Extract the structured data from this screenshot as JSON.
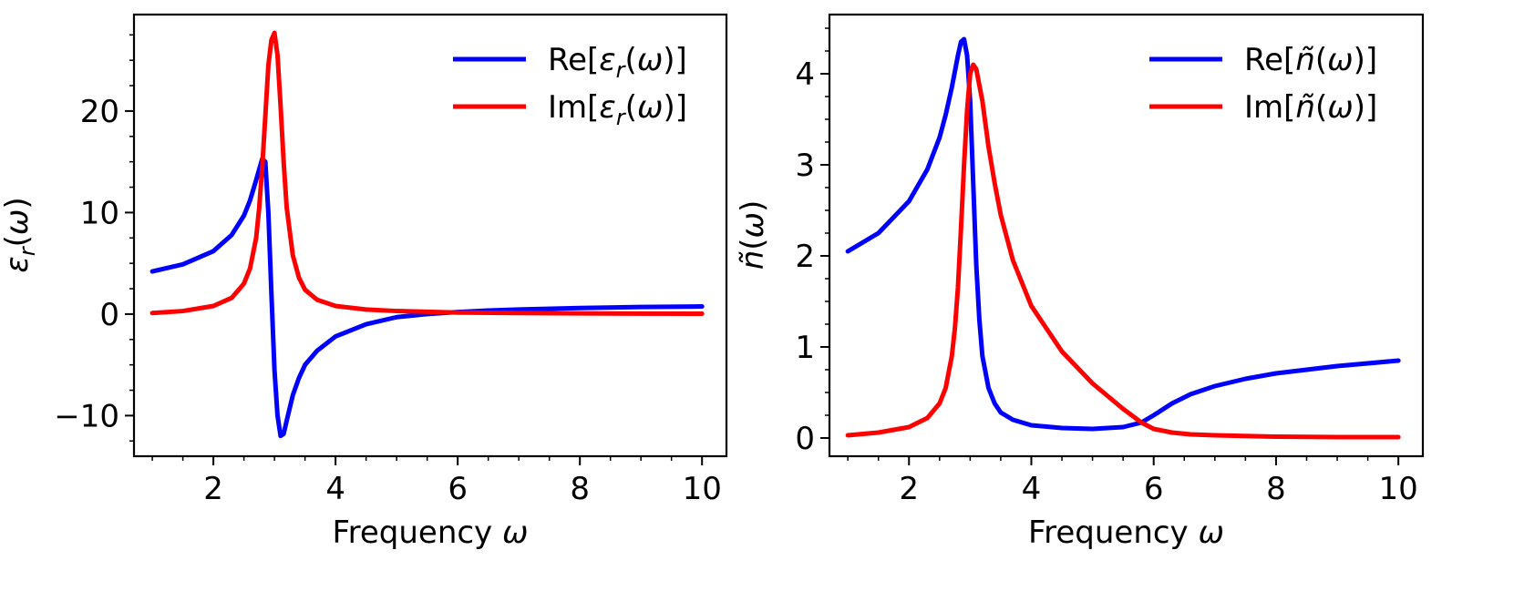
{
  "chart_data": [
    {
      "type": "line",
      "xlabel": "Frequency ω",
      "ylabel": "εr(ω)",
      "xlim": [
        0.7,
        10.4
      ],
      "ylim": [
        -14.0,
        29.5
      ],
      "xticks": [
        2,
        4,
        6,
        8,
        10
      ],
      "xtick_labels": [
        "2",
        "4",
        "6",
        "8",
        "10"
      ],
      "yticks": [
        -10,
        0,
        10,
        20
      ],
      "ytick_labels": [
        "−10",
        "0",
        "10",
        "20"
      ],
      "legend_position": "top-right",
      "series": [
        {
          "name": "Re[εr(ω)]",
          "legend_prefix": "Re[",
          "legend_sym": "ε",
          "legend_sub": "r",
          "legend_suffix": "(ω)]",
          "color": "#0000ff",
          "x": [
            1.0,
            1.5,
            2.0,
            2.3,
            2.5,
            2.6,
            2.7,
            2.8,
            2.85,
            2.9,
            2.95,
            3.0,
            3.05,
            3.1,
            3.15,
            3.2,
            3.3,
            3.4,
            3.5,
            3.7,
            4.0,
            4.5,
            5.0,
            5.5,
            6.0,
            6.5,
            7.0,
            8.0,
            9.0,
            10.0
          ],
          "y": [
            4.2,
            4.9,
            6.2,
            7.8,
            9.7,
            11.2,
            13.2,
            15.3,
            15.0,
            10.0,
            2.0,
            -5.5,
            -10.0,
            -12.0,
            -11.8,
            -10.5,
            -8.0,
            -6.3,
            -5.0,
            -3.6,
            -2.2,
            -1.0,
            -0.3,
            0.0,
            0.2,
            0.35,
            0.45,
            0.6,
            0.7,
            0.75
          ]
        },
        {
          "name": "Im[εr(ω)]",
          "legend_prefix": "Im[",
          "legend_sym": "ε",
          "legend_sub": "r",
          "legend_suffix": "(ω)]",
          "color": "#ff0000",
          "x": [
            1.0,
            1.5,
            2.0,
            2.3,
            2.5,
            2.6,
            2.7,
            2.75,
            2.8,
            2.85,
            2.9,
            2.95,
            3.0,
            3.05,
            3.1,
            3.15,
            3.2,
            3.3,
            3.4,
            3.5,
            3.7,
            4.0,
            4.5,
            5.0,
            6.0,
            7.0,
            8.0,
            9.0,
            10.0
          ],
          "y": [
            0.1,
            0.3,
            0.8,
            1.6,
            3.0,
            4.5,
            7.5,
            10.5,
            14.5,
            19.5,
            24.5,
            27.0,
            27.7,
            25.5,
            20.5,
            15.0,
            10.5,
            5.8,
            3.6,
            2.4,
            1.4,
            0.8,
            0.45,
            0.3,
            0.15,
            0.1,
            0.07,
            0.05,
            0.04
          ]
        }
      ]
    },
    {
      "type": "line",
      "xlabel": "Frequency ω",
      "ylabel": "ñ(ω)",
      "xlim": [
        0.7,
        10.4
      ],
      "ylim": [
        -0.2,
        4.65
      ],
      "xticks": [
        2,
        4,
        6,
        8,
        10
      ],
      "xtick_labels": [
        "2",
        "4",
        "6",
        "8",
        "10"
      ],
      "yticks": [
        0,
        1,
        2,
        3,
        4
      ],
      "ytick_labels": [
        "0",
        "1",
        "2",
        "3",
        "4"
      ],
      "legend_position": "top-right",
      "series": [
        {
          "name": "Re[ñ(ω)]",
          "legend_prefix": "Re[",
          "legend_sym": "ñ",
          "legend_sub": "",
          "legend_suffix": "(ω)]",
          "color": "#0000ff",
          "x": [
            1.0,
            1.5,
            2.0,
            2.3,
            2.5,
            2.6,
            2.7,
            2.8,
            2.85,
            2.9,
            2.95,
            3.0,
            3.05,
            3.1,
            3.15,
            3.2,
            3.3,
            3.4,
            3.5,
            3.7,
            4.0,
            4.5,
            5.0,
            5.5,
            5.8,
            6.0,
            6.3,
            6.6,
            7.0,
            7.5,
            8.0,
            9.0,
            10.0
          ],
          "y": [
            2.05,
            2.25,
            2.6,
            2.95,
            3.3,
            3.55,
            3.85,
            4.2,
            4.35,
            4.38,
            4.2,
            3.7,
            2.8,
            1.9,
            1.3,
            0.9,
            0.55,
            0.38,
            0.28,
            0.2,
            0.14,
            0.11,
            0.1,
            0.12,
            0.17,
            0.25,
            0.38,
            0.48,
            0.57,
            0.65,
            0.71,
            0.79,
            0.85
          ]
        },
        {
          "name": "Im[ñ(ω)]",
          "legend_prefix": "Im[",
          "legend_sym": "ñ",
          "legend_sub": "",
          "legend_suffix": "(ω)]",
          "color": "#ff0000",
          "x": [
            1.0,
            1.5,
            2.0,
            2.3,
            2.5,
            2.6,
            2.7,
            2.75,
            2.8,
            2.85,
            2.9,
            2.95,
            3.0,
            3.05,
            3.1,
            3.2,
            3.3,
            3.4,
            3.5,
            3.7,
            4.0,
            4.5,
            5.0,
            5.5,
            5.8,
            6.0,
            6.3,
            6.6,
            7.0,
            8.0,
            9.0,
            10.0
          ],
          "y": [
            0.03,
            0.06,
            0.12,
            0.22,
            0.38,
            0.55,
            0.9,
            1.2,
            1.65,
            2.3,
            3.0,
            3.6,
            4.0,
            4.1,
            4.05,
            3.7,
            3.2,
            2.8,
            2.45,
            1.95,
            1.45,
            0.95,
            0.6,
            0.32,
            0.17,
            0.1,
            0.06,
            0.04,
            0.03,
            0.015,
            0.01,
            0.01
          ]
        }
      ]
    }
  ]
}
